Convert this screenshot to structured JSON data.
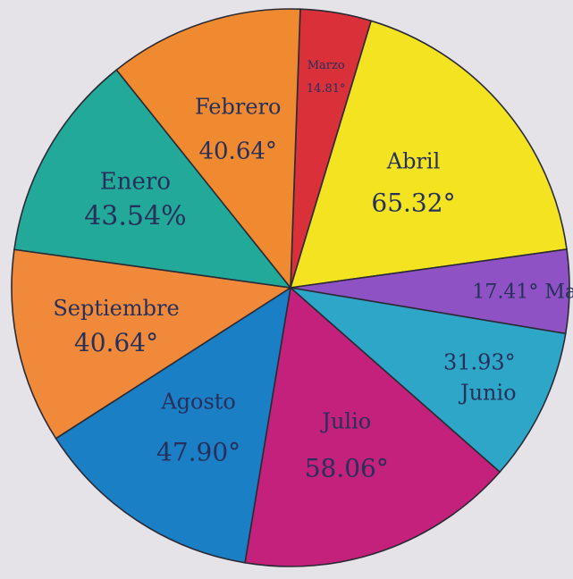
{
  "chart_data": {
    "type": "pie",
    "title": "",
    "unit": "degrees",
    "slices": [
      {
        "label": "Marzo",
        "value_text": "14.81°",
        "value": 14.81,
        "color": "#d9303a"
      },
      {
        "label": "Abril",
        "value_text": "65.32°",
        "value": 65.32,
        "color": "#f3e320"
      },
      {
        "label": "Mayo",
        "value_text": "17.41°",
        "value": 17.41,
        "color": "#8f52c4"
      },
      {
        "label": "Junio",
        "value_text": "31.93°",
        "value": 31.93,
        "color": "#2ea6c8"
      },
      {
        "label": "Julio",
        "value_text": "58.06°",
        "value": 58.06,
        "color": "#c4217c"
      },
      {
        "label": "Agosto",
        "value_text": "47.90°",
        "value": 47.9,
        "color": "#1a7fc5"
      },
      {
        "label": "Septiembre",
        "value_text": "40.64°",
        "value": 40.64,
        "color": "#f08a3a"
      },
      {
        "label": "Enero",
        "value_text": "43.54%",
        "value": 43.54,
        "color": "#22a99a"
      },
      {
        "label": "Febrero",
        "value_text": "40.64°",
        "value": 40.64,
        "color": "#ef8a30"
      }
    ],
    "legend": "none"
  }
}
